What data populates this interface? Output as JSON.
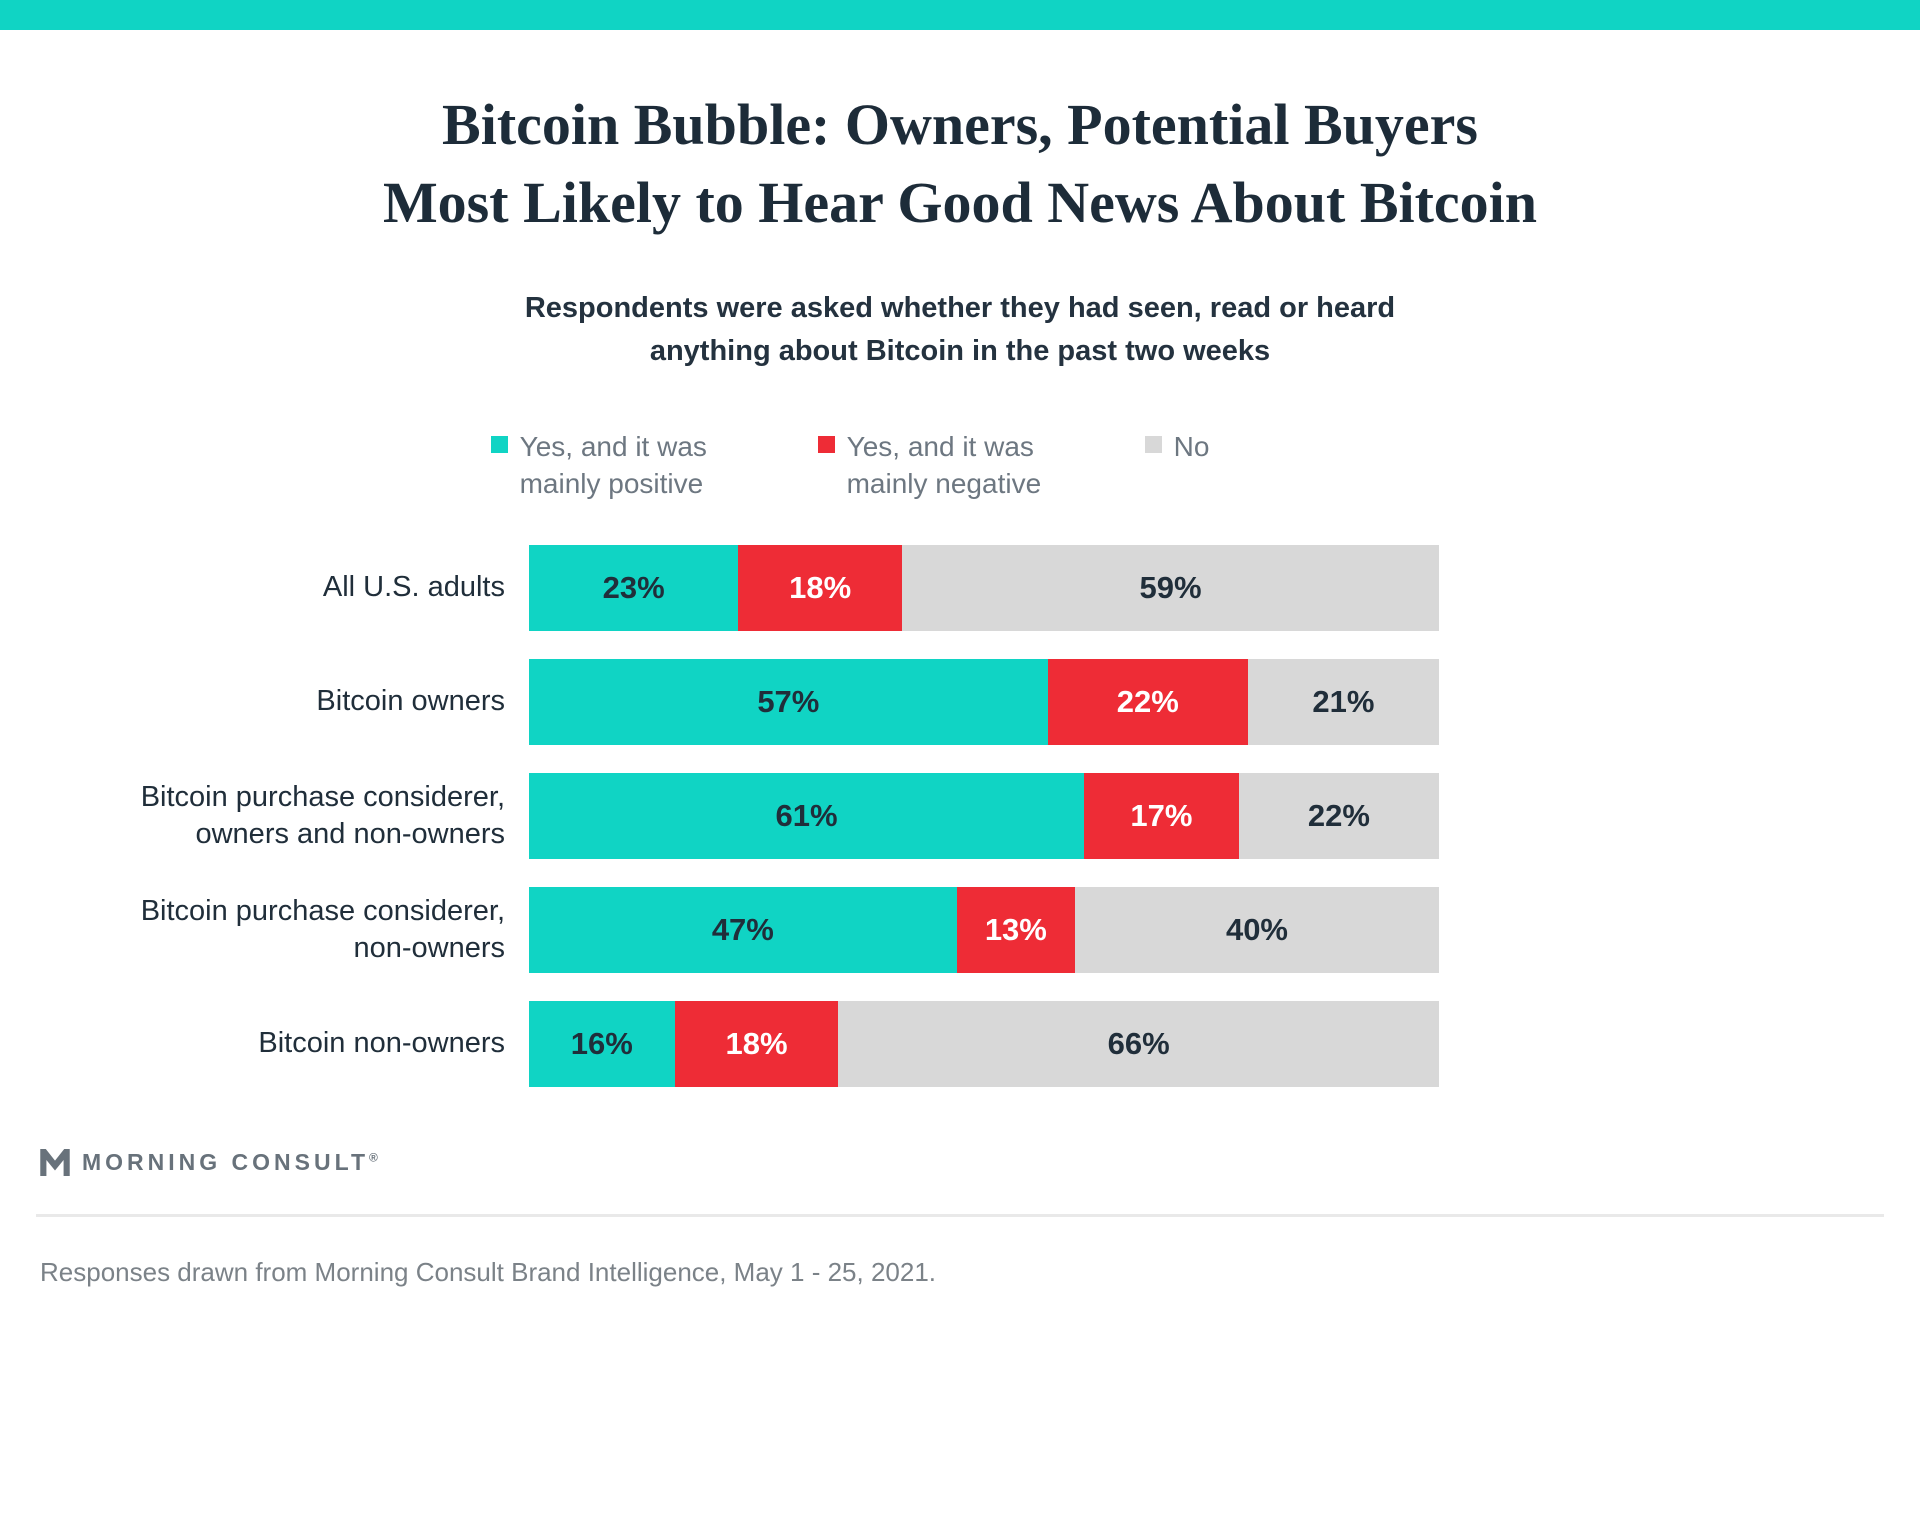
{
  "page": {
    "title": "Bitcoin Bubble: Owners, Potential Buyers\nMost Likely to Hear Good News About Bitcoin",
    "subtitle": "Respondents were asked whether they had seen, read or heard\nanything about Bitcoin in the past two weeks",
    "footer_brand": "MORNING CONSULT",
    "trademark": "®",
    "footer_note": "Responses drawn from Morning Consult Brand Intelligence, May 1 - 25, 2021."
  },
  "colors": {
    "stripe_teal": "#10d4c4",
    "bar_teal": "#10d4c4",
    "bar_red": "#ee2c36",
    "bar_gray": "#d8d8d8",
    "title_text": "#1d2c39",
    "dark_label": "#202e3a",
    "white_label": "#ffffff",
    "legend_text": "#6d7781",
    "footnote_text": "#7b8288"
  },
  "chart_data": {
    "type": "bar",
    "orientation": "horizontal",
    "stacked": true,
    "title": "Bitcoin Bubble: Owners, Potential Buyers Most Likely to Hear Good News About Bitcoin",
    "subtitle": "Respondents were asked whether they had seen, read or heard anything about Bitcoin in the past two weeks",
    "value_suffix": "%",
    "xlim": [
      0,
      100
    ],
    "legend_position": "top",
    "categories": [
      "All U.S. adults",
      "Bitcoin owners",
      "Bitcoin purchase considerer,\nowners and non-owners",
      "Bitcoin purchase considerer,\nnon-owners",
      "Bitcoin non-owners"
    ],
    "series": [
      {
        "key": "positive",
        "name": "Yes, and it was mainly positive",
        "color": "#10d4c4",
        "label_color": "#202e3a",
        "values": [
          23,
          57,
          61,
          47,
          16
        ]
      },
      {
        "key": "negative",
        "name": "Yes, and it was mainly negative",
        "color": "#ee2c36",
        "label_color": "#ffffff",
        "values": [
          18,
          22,
          17,
          13,
          18
        ]
      },
      {
        "key": "no",
        "name": "No",
        "color": "#d8d8d8",
        "label_color": "#202e3a",
        "values": [
          59,
          21,
          22,
          40,
          66
        ]
      }
    ]
  }
}
